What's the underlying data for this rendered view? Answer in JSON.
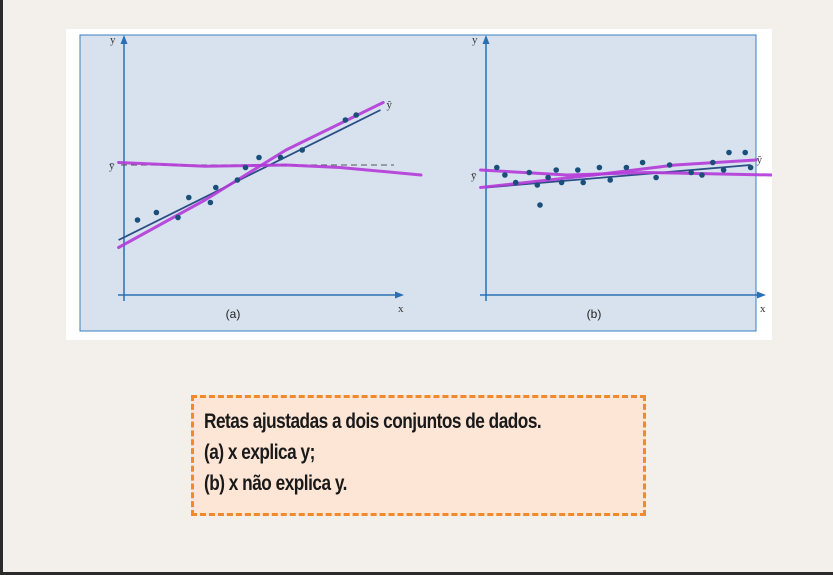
{
  "caption": {
    "line1": "Retas ajustadas a dois conjuntos de dados.",
    "line2": "(a) x explica y;",
    "line3": "(b) x não explica y."
  },
  "colors": {
    "panel_bg": "#d7e2ee",
    "panel_border": "#3b7fc0",
    "axis": "#2a6fb3",
    "points": "#1a4f7a",
    "fit_line": "#2a4f86",
    "marker": "#b53ad8",
    "caption_border": "#f08a2c",
    "caption_bg": "#fde6d6"
  },
  "chart_data": [
    {
      "type": "scatter",
      "panel_label": "(a)",
      "xlabel": "x",
      "ylabel": "y",
      "mean_label": "ȳ",
      "fit_label": "ŷ",
      "xlim": [
        0,
        100
      ],
      "ylim": [
        0,
        100
      ],
      "mean_y": 52,
      "points": [
        [
          5,
          30
        ],
        [
          12,
          33
        ],
        [
          20,
          31
        ],
        [
          24,
          39
        ],
        [
          32,
          37
        ],
        [
          34,
          43
        ],
        [
          42,
          46
        ],
        [
          45,
          51
        ],
        [
          50,
          55
        ],
        [
          58,
          55
        ],
        [
          66,
          58
        ],
        [
          82,
          70
        ],
        [
          86,
          72
        ]
      ],
      "fit_line": [
        [
          -2,
          22
        ],
        [
          95,
          74
        ]
      ],
      "marked_mean_line": [
        [
          -2,
          53
        ],
        [
          30,
          51.5
        ],
        [
          60,
          52
        ],
        [
          80,
          51
        ],
        [
          110,
          48
        ]
      ],
      "marked_fit_line": [
        [
          -2,
          19
        ],
        [
          30,
          38
        ],
        [
          60,
          58
        ],
        [
          96,
          77
        ]
      ]
    },
    {
      "type": "scatter",
      "panel_label": "(b)",
      "xlabel": "x",
      "ylabel": "y",
      "mean_label": "ȳ",
      "fit_label": "ŷ",
      "xlim": [
        0,
        100
      ],
      "ylim": [
        0,
        100
      ],
      "mean_y": 48,
      "points": [
        [
          4,
          51
        ],
        [
          7,
          48
        ],
        [
          11,
          45
        ],
        [
          16,
          49
        ],
        [
          19,
          44
        ],
        [
          20,
          36
        ],
        [
          23,
          47
        ],
        [
          26,
          50
        ],
        [
          28,
          45
        ],
        [
          34,
          50
        ],
        [
          36,
          45
        ],
        [
          42,
          51
        ],
        [
          46,
          46
        ],
        [
          52,
          51
        ],
        [
          58,
          53
        ],
        [
          63,
          47
        ],
        [
          68,
          52
        ],
        [
          76,
          49
        ],
        [
          80,
          48
        ],
        [
          84,
          53
        ],
        [
          88,
          50
        ],
        [
          90,
          57
        ],
        [
          96,
          57
        ],
        [
          98,
          51
        ]
      ],
      "fit_line": [
        [
          0,
          43
        ],
        [
          98,
          52
        ]
      ],
      "marked_mean_line": [
        [
          -2,
          50
        ],
        [
          30,
          48
        ],
        [
          60,
          49
        ],
        [
          106,
          48
        ]
      ],
      "marked_fit_line": [
        [
          -2,
          43
        ],
        [
          40,
          48
        ],
        [
          70,
          52
        ],
        [
          100,
          54
        ]
      ]
    }
  ]
}
